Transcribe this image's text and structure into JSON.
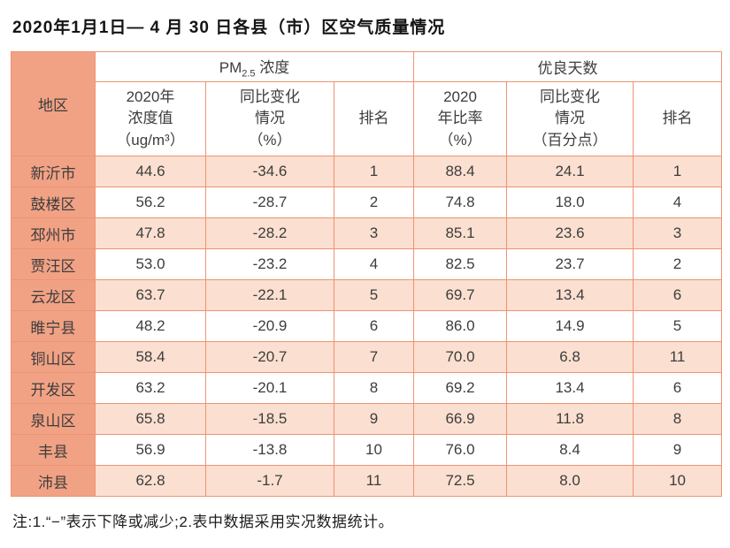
{
  "title": "2020年1月1日— 4 月 30 日各县（市）区空气质量情况",
  "note": "注:1.“−”表示下降或减少;2.表中数据采用实况数据统计。",
  "colors": {
    "region_column_bg": "#f2a284",
    "odd_row_bg": "#fbdfd0",
    "even_row_bg": "#ffffff",
    "border": "#ee9372"
  },
  "table": {
    "region_header": "地区",
    "group_headers": {
      "pm25_prefix": "PM",
      "pm25_sub": "2.5",
      "pm25_suffix": " 浓度",
      "good_days": "优良天数"
    },
    "sub_headers": {
      "pm_value": "2020年\n浓度值\n（ug/m³）",
      "pm_change": "同比变化\n情况\n（%）",
      "pm_rank": "排名",
      "good_rate": "2020\n年比率\n（%）",
      "good_change": "同比变化\n情况\n（百分点）",
      "good_rank": "排名"
    },
    "rows": [
      {
        "region": "新沂市",
        "pm_value": "44.6",
        "pm_change": "-34.6",
        "pm_rank": "1",
        "good_rate": "88.4",
        "good_change": "24.1",
        "good_rank": "1"
      },
      {
        "region": "鼓楼区",
        "pm_value": "56.2",
        "pm_change": "-28.7",
        "pm_rank": "2",
        "good_rate": "74.8",
        "good_change": "18.0",
        "good_rank": "4"
      },
      {
        "region": "邳州市",
        "pm_value": "47.8",
        "pm_change": "-28.2",
        "pm_rank": "3",
        "good_rate": "85.1",
        "good_change": "23.6",
        "good_rank": "3"
      },
      {
        "region": "贾汪区",
        "pm_value": "53.0",
        "pm_change": "-23.2",
        "pm_rank": "4",
        "good_rate": "82.5",
        "good_change": "23.7",
        "good_rank": "2"
      },
      {
        "region": "云龙区",
        "pm_value": "63.7",
        "pm_change": "-22.1",
        "pm_rank": "5",
        "good_rate": "69.7",
        "good_change": "13.4",
        "good_rank": "6"
      },
      {
        "region": "睢宁县",
        "pm_value": "48.2",
        "pm_change": "-20.9",
        "pm_rank": "6",
        "good_rate": "86.0",
        "good_change": "14.9",
        "good_rank": "5"
      },
      {
        "region": "铜山区",
        "pm_value": "58.4",
        "pm_change": "-20.7",
        "pm_rank": "7",
        "good_rate": "70.0",
        "good_change": "6.8",
        "good_rank": "11"
      },
      {
        "region": "开发区",
        "pm_value": "63.2",
        "pm_change": "-20.1",
        "pm_rank": "8",
        "good_rate": "69.2",
        "good_change": "13.4",
        "good_rank": "6"
      },
      {
        "region": "泉山区",
        "pm_value": "65.8",
        "pm_change": "-18.5",
        "pm_rank": "9",
        "good_rate": "66.9",
        "good_change": "11.8",
        "good_rank": "8"
      },
      {
        "region": "丰县",
        "pm_value": "56.9",
        "pm_change": "-13.8",
        "pm_rank": "10",
        "good_rate": "76.0",
        "good_change": "8.4",
        "good_rank": "9"
      },
      {
        "region": "沛县",
        "pm_value": "62.8",
        "pm_change": "-1.7",
        "pm_rank": "11",
        "good_rate": "72.5",
        "good_change": "8.0",
        "good_rank": "10"
      }
    ]
  }
}
